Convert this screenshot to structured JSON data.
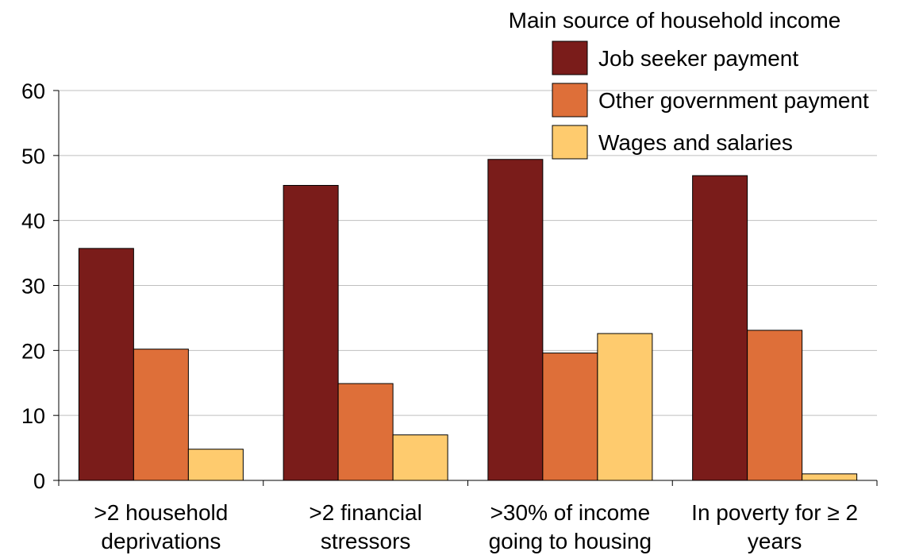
{
  "chart_data": {
    "type": "bar",
    "title": "",
    "xlabel": "",
    "ylabel": "",
    "ylim": [
      0,
      60
    ],
    "yticks": [
      "0",
      "10",
      "20",
      "30",
      "40",
      "50",
      "60"
    ],
    "categories": [
      [
        ">2 household",
        "deprivations"
      ],
      [
        ">2 financial",
        "stressors"
      ],
      [
        ">30% of income",
        "going to housing"
      ],
      [
        "In poverty for ≥ 2",
        "years"
      ]
    ],
    "grid": true,
    "legend": {
      "title": "Main source of household income",
      "placement": "top-right"
    },
    "series": [
      {
        "name": "Job seeker payment",
        "color": "#7a1c1a",
        "values": [
          35.7,
          45.4,
          49.4,
          46.9
        ]
      },
      {
        "name": "Other government payment",
        "color": "#de6f39",
        "values": [
          20.2,
          14.9,
          19.6,
          23.1
        ]
      },
      {
        "name": "Wages and salaries",
        "color": "#fecb6e",
        "values": [
          4.8,
          7.0,
          22.6,
          1.0
        ]
      }
    ]
  }
}
